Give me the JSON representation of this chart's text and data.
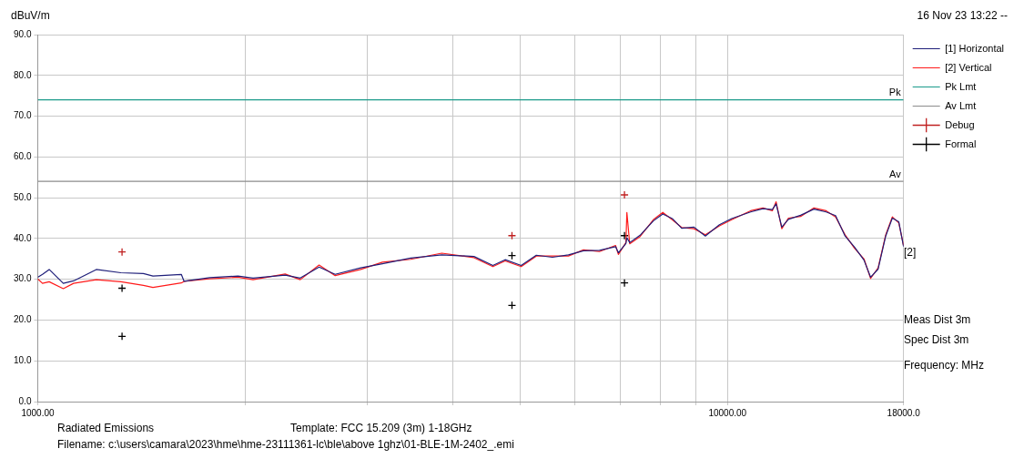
{
  "chart_data": {
    "type": "line",
    "ylabel": "dBuV/m",
    "xlabel": "Frequency: MHz",
    "log": "x",
    "grid": true,
    "legend": "right",
    "line_style": "solid",
    "xlim": [
      1000,
      18000
    ],
    "xticks": [
      {
        "value": 1000,
        "label": "1000.00"
      },
      {
        "value": 2000,
        "label": null
      },
      {
        "value": 3000,
        "label": null
      },
      {
        "value": 4000,
        "label": null
      },
      {
        "value": 5000,
        "label": null
      },
      {
        "value": 6000,
        "label": null
      },
      {
        "value": 7000,
        "label": null
      },
      {
        "value": 8000,
        "label": null
      },
      {
        "value": 9000,
        "label": null
      },
      {
        "value": 10000,
        "label": "10000.00"
      },
      {
        "value": 18000,
        "label": "18000.0"
      }
    ],
    "ylim": [
      0,
      90
    ],
    "yticks": [
      {
        "value": 0,
        "label": "0.0"
      },
      {
        "value": 10,
        "label": "10.0"
      },
      {
        "value": 20,
        "label": "20.0"
      },
      {
        "value": 30,
        "label": "30.0"
      },
      {
        "value": 40,
        "label": "40.0"
      },
      {
        "value": 50,
        "label": "50.0"
      },
      {
        "value": 60,
        "label": "60.0"
      },
      {
        "value": 70,
        "label": "70.0"
      },
      {
        "value": 80,
        "label": "80.0"
      },
      {
        "value": 90,
        "label": "90.0"
      }
    ],
    "x": [
      1000,
      1016,
      1039,
      1089,
      1127,
      1216,
      1320,
      1423,
      1469,
      1615,
      1630,
      1775,
      1951,
      2052,
      2284,
      2402,
      2558,
      2699,
      2939,
      3160,
      3473,
      3853,
      4290,
      4569,
      4760,
      5022,
      5282,
      5574,
      5880,
      6183,
      6523,
      6882,
      6947,
      7124,
      7147,
      7215,
      7470,
      7806,
      8057,
      8315,
      8582,
      8942,
      9287,
      9735,
      10141,
      10802,
      11255,
      11614,
      11762,
      11987,
      12255,
      12764,
      13345,
      13900,
      14345,
      14808,
      15282,
      15772,
      16125,
      16534,
      16958,
      17337,
      17716,
      18000
    ],
    "series": [
      {
        "name": "[1] Horizontal",
        "color": "#1f1f7a",
        "values": [
          30.5,
          31.2,
          32.4,
          29.0,
          29.6,
          32.4,
          31.6,
          31.4,
          30.8,
          31.2,
          29.5,
          30.4,
          30.8,
          30.3,
          31.0,
          30.3,
          33.0,
          31.2,
          32.8,
          33.8,
          35.2,
          36.0,
          35.6,
          33.4,
          34.8,
          33.4,
          35.9,
          35.4,
          36.0,
          37.0,
          37.1,
          38.0,
          36.5,
          38.8,
          40.2,
          39.0,
          40.8,
          44.3,
          46.0,
          44.9,
          42.5,
          42.8,
          40.6,
          43.4,
          44.9,
          46.5,
          47.3,
          47.1,
          48.5,
          42.8,
          44.7,
          45.7,
          47.2,
          46.5,
          45.6,
          40.6,
          37.9,
          34.7,
          30.5,
          32.5,
          40.6,
          45.0,
          44.1,
          38.0
        ]
      },
      {
        "name": "[2] Vertical",
        "color": "#ff1a1a",
        "values": [
          30.1,
          29.0,
          29.4,
          27.7,
          29.0,
          29.9,
          29.4,
          28.5,
          28.0,
          29.1,
          29.5,
          30.1,
          30.5,
          29.9,
          31.3,
          29.9,
          33.5,
          30.9,
          32.4,
          34.2,
          34.9,
          36.4,
          35.3,
          33.1,
          34.5,
          33.1,
          35.7,
          35.7,
          35.7,
          37.2,
          36.8,
          38.3,
          36.1,
          39.0,
          46.4,
          38.7,
          40.5,
          44.6,
          46.4,
          44.6,
          42.7,
          42.4,
          40.9,
          43.1,
          44.6,
          46.8,
          47.5,
          46.8,
          49.0,
          42.4,
          45.0,
          45.4,
          47.5,
          46.8,
          45.3,
          40.9,
          37.6,
          35.0,
          30.2,
          32.8,
          40.9,
          45.3,
          43.8,
          38.3
        ]
      },
      {
        "name": "Pk Lmt",
        "color": "#1a9a8a",
        "x": [
          1000,
          18000
        ],
        "values": [
          74,
          74
        ]
      },
      {
        "name": "Av Lmt",
        "color": "#8c8c8c",
        "x": [
          1000,
          18000
        ],
        "values": [
          54,
          54
        ]
      },
      {
        "name": "Debug",
        "type": "scatter",
        "marker": "cross",
        "color": "#c02020",
        "x": [
          1325,
          4870,
          7090
        ],
        "values": [
          36.7,
          40.7,
          50.7
        ]
      },
      {
        "name": "Formal",
        "type": "scatter",
        "marker": "cross",
        "color": "#000000",
        "x": [
          1325,
          1325,
          4870,
          4870,
          7090,
          7090
        ],
        "values": [
          27.8,
          16.0,
          35.8,
          23.6,
          40.7,
          29.1
        ]
      }
    ],
    "annotations": [
      "16 Nov 23 13:22 --",
      "[2]",
      "Meas Dist 3m",
      "Spec Dist 3m",
      "Radiated Emissions",
      "Template: FCC 15.209 (3m) 1-18GHz",
      "Filename: c:\\users\\camara\\2023\\hme\\hme-23111361-lc\\ble\\above 1ghz\\01-BLE-1M-2402_.emi",
      {
        "text": "Pk",
        "x": 18000,
        "y": 74
      },
      {
        "text": "Av",
        "x": 18000,
        "y": 54
      }
    ]
  }
}
